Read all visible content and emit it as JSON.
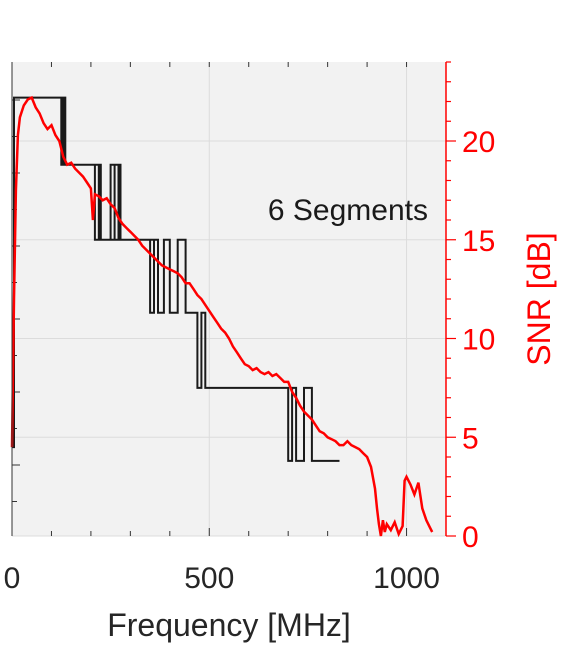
{
  "chart_data": {
    "type": "line",
    "xlabel": "Frequency [MHz]",
    "ylabel_right": "SNR [dB]",
    "annotation": "6 Segments",
    "xlim": [
      0,
      1100
    ],
    "ylim_right": [
      0,
      24
    ],
    "x_ticks": [
      0,
      500,
      1000
    ],
    "y_ticks_right": [
      0,
      5,
      10,
      15,
      20
    ],
    "grid": true,
    "colors": {
      "snr_line": "#ff0000",
      "segments_line": "#1a1a1a",
      "axis_right": "#ff0000",
      "plot_bg": "#f2f2f2",
      "grid": "#dcdcdc"
    },
    "series": [
      {
        "key": "snr",
        "axis": "right",
        "x": [
          0,
          5,
          10,
          15,
          20,
          30,
          40,
          50,
          60,
          70,
          80,
          90,
          100,
          110,
          120,
          130,
          140,
          150,
          160,
          170,
          180,
          190,
          200,
          205,
          210,
          220,
          230,
          240,
          250,
          260,
          270,
          280,
          290,
          300,
          310,
          320,
          330,
          340,
          350,
          360,
          370,
          380,
          390,
          400,
          410,
          420,
          430,
          440,
          450,
          460,
          470,
          480,
          490,
          500,
          510,
          520,
          530,
          540,
          550,
          560,
          570,
          580,
          590,
          600,
          610,
          620,
          630,
          640,
          650,
          660,
          670,
          680,
          690,
          700,
          710,
          720,
          730,
          740,
          750,
          760,
          770,
          780,
          790,
          800,
          810,
          820,
          830,
          840,
          850,
          860,
          870,
          880,
          890,
          900,
          910,
          920,
          925,
          930,
          935,
          940,
          945,
          950,
          960,
          970,
          980,
          990,
          995,
          1000,
          1010,
          1020,
          1030,
          1040,
          1050,
          1060,
          1065
        ],
        "y": [
          4.5,
          12.0,
          17.5,
          20.3,
          21.2,
          21.8,
          22.1,
          22.2,
          21.7,
          21.4,
          20.9,
          20.6,
          20.8,
          20.3,
          20.0,
          19.2,
          18.8,
          18.9,
          18.6,
          18.4,
          18.2,
          17.9,
          17.6,
          16.0,
          17.3,
          17.2,
          17.0,
          17.1,
          16.8,
          16.6,
          16.1,
          15.8,
          15.6,
          15.4,
          15.2,
          15.0,
          14.7,
          14.5,
          14.3,
          14.1,
          13.9,
          13.7,
          13.6,
          13.5,
          13.4,
          13.3,
          13.1,
          12.8,
          12.8,
          12.5,
          12.2,
          12.0,
          11.7,
          11.4,
          11.1,
          10.8,
          10.5,
          10.3,
          10.0,
          9.6,
          9.3,
          9.0,
          8.7,
          8.6,
          8.4,
          8.5,
          8.3,
          8.2,
          8.3,
          8.1,
          8.2,
          8.0,
          7.8,
          7.8,
          7.3,
          7.0,
          6.6,
          6.3,
          6.1,
          5.9,
          5.6,
          5.3,
          5.2,
          5.0,
          4.9,
          4.8,
          4.6,
          4.6,
          4.8,
          4.6,
          4.5,
          4.4,
          4.2,
          4.0,
          3.5,
          2.4,
          1.4,
          0.6,
          0.0,
          0.8,
          0.2,
          0.6,
          0.3,
          0.7,
          0.1,
          0.5,
          2.8,
          3.0,
          2.6,
          2.1,
          2.7,
          1.4,
          0.8,
          0.4,
          0.2
        ]
      },
      {
        "key": "segments",
        "axis": "right",
        "x": [
          0,
          5,
          5,
          130,
          130,
          135,
          135,
          125,
          125,
          135,
          135,
          220,
          220,
          210,
          210,
          225,
          225,
          260,
          260,
          270,
          270,
          250,
          250,
          275,
          275,
          360,
          360,
          350,
          350,
          370,
          370,
          385,
          385,
          400,
          400,
          420,
          420,
          440,
          440,
          470,
          470,
          480,
          480,
          490,
          490,
          505,
          505,
          700,
          700,
          710,
          710,
          720,
          720,
          740,
          740,
          760,
          760,
          830
        ],
        "y": [
          4.5,
          4.5,
          22.2,
          22.2,
          18.8,
          18.8,
          22.2,
          22.2,
          18.8,
          18.8,
          18.8,
          18.8,
          15.0,
          15.0,
          18.8,
          18.8,
          15.0,
          15.0,
          18.8,
          18.8,
          15.0,
          15.0,
          18.8,
          18.8,
          15.0,
          15.0,
          11.3,
          11.3,
          15.0,
          15.0,
          11.3,
          11.3,
          15.0,
          15.0,
          11.3,
          11.3,
          15.0,
          15.0,
          11.3,
          11.3,
          7.5,
          7.5,
          11.3,
          11.3,
          7.5,
          7.5,
          7.5,
          7.5,
          3.8,
          3.8,
          7.5,
          7.5,
          3.8,
          3.8,
          7.5,
          7.5,
          3.8,
          3.8
        ]
      }
    ]
  }
}
